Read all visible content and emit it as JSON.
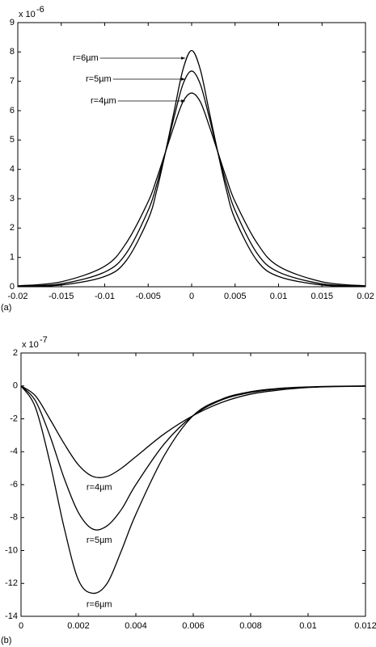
{
  "chart_data": [
    {
      "type": "line",
      "panel_label": "(a)",
      "scale_label": "x 10",
      "scale_exponent": "-6",
      "x": [
        -0.02,
        -0.015,
        -0.01,
        -0.0075,
        -0.005,
        -0.004,
        -0.003,
        -0.002,
        -0.001,
        0,
        0.001,
        0.002,
        0.003,
        0.004,
        0.005,
        0.0075,
        0.01,
        0.015,
        0.02
      ],
      "series": [
        {
          "name": "r=6µm",
          "color": "#000000",
          "values": [
            0.01,
            0.06,
            0.35,
            0.9,
            2.3,
            3.3,
            4.6,
            6.0,
            7.4,
            8.05,
            7.4,
            6.0,
            4.6,
            3.3,
            2.3,
            0.9,
            0.35,
            0.06,
            0.01
          ]
        },
        {
          "name": "r=5µm",
          "color": "#000000",
          "values": [
            0.02,
            0.1,
            0.5,
            1.15,
            2.6,
            3.5,
            4.6,
            5.8,
            6.9,
            7.35,
            6.9,
            5.8,
            4.6,
            3.5,
            2.6,
            1.15,
            0.5,
            0.1,
            0.02
          ]
        },
        {
          "name": "r=4µm",
          "color": "#000000",
          "values": [
            0.03,
            0.17,
            0.7,
            1.5,
            2.9,
            3.7,
            4.6,
            5.5,
            6.3,
            6.6,
            6.3,
            5.5,
            4.6,
            3.7,
            2.9,
            1.5,
            0.7,
            0.17,
            0.03
          ]
        }
      ],
      "xlim": [
        -0.02,
        0.02
      ],
      "xticks": [
        -0.02,
        -0.015,
        -0.01,
        -0.005,
        0,
        0.005,
        0.01,
        0.015,
        0.02
      ],
      "ylim": [
        0,
        9
      ],
      "yticks": [
        0,
        1,
        2,
        3,
        4,
        5,
        6,
        7,
        8,
        9
      ]
    },
    {
      "type": "line",
      "panel_label": "(b)",
      "scale_label": "x 10",
      "scale_exponent": "-7",
      "x": [
        0,
        0.0005,
        0.001,
        0.0015,
        0.002,
        0.0025,
        0.003,
        0.0035,
        0.004,
        0.005,
        0.006,
        0.007,
        0.008,
        0.009,
        0.01,
        0.011,
        0.012
      ],
      "series": [
        {
          "name": "r=4µm",
          "color": "#000000",
          "values": [
            0,
            -0.6,
            -2.0,
            -3.5,
            -4.8,
            -5.5,
            -5.5,
            -5.0,
            -4.3,
            -2.9,
            -1.8,
            -1.0,
            -0.5,
            -0.25,
            -0.1,
            -0.04,
            -0.02
          ]
        },
        {
          "name": "r=5µm",
          "color": "#000000",
          "values": [
            0,
            -0.9,
            -3.0,
            -5.6,
            -7.7,
            -8.7,
            -8.5,
            -7.5,
            -6.0,
            -3.5,
            -1.8,
            -0.85,
            -0.4,
            -0.18,
            -0.08,
            -0.03,
            -0.01
          ]
        },
        {
          "name": "r=6µm",
          "color": "#000000",
          "values": [
            0,
            -1.3,
            -4.6,
            -8.6,
            -11.8,
            -12.6,
            -12.0,
            -10.0,
            -7.8,
            -4.2,
            -1.8,
            -0.8,
            -0.35,
            -0.15,
            -0.06,
            -0.02,
            -0.01
          ]
        }
      ],
      "xlim": [
        0,
        0.012
      ],
      "xticks": [
        0,
        0.002,
        0.004,
        0.006,
        0.008,
        0.01,
        0.012
      ],
      "ylim": [
        -14,
        2
      ],
      "yticks": [
        -14,
        -12,
        -10,
        -8,
        -6,
        -4,
        -2,
        0,
        2
      ]
    }
  ]
}
